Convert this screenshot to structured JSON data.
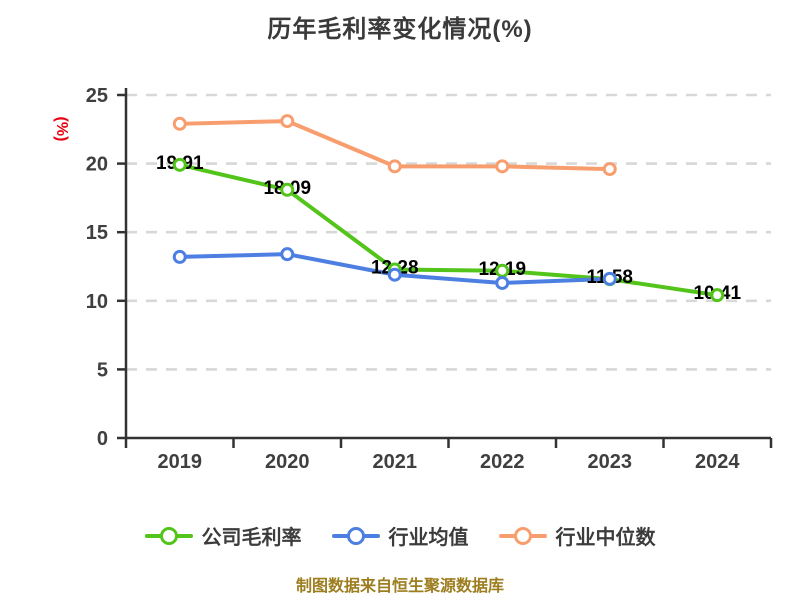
{
  "page": {
    "title": "历年毛利率变化情况(%)",
    "footer": "制图数据来自恒生聚源数据库"
  },
  "colors": {
    "background": "#ffffff",
    "title_text": "#3a3a3a",
    "axis_line": "#333333",
    "axis_text": "#3f3f3f",
    "gridline": "#d8d8d8",
    "value_label": "#000000",
    "ylabel_text": "#e60012",
    "legend_text": "#3c3c3c",
    "footer_text": "#9c7d1f"
  },
  "chart_data": {
    "type": "line",
    "title": "历年毛利率变化情况(%)",
    "ylabel": "(%)",
    "xlabel": "",
    "x": [
      "2019",
      "2020",
      "2021",
      "2022",
      "2023",
      "2024"
    ],
    "ylim": [
      0,
      25
    ],
    "yticks": [
      0,
      5,
      10,
      15,
      20,
      25
    ],
    "ytick_interval": 5,
    "grid": "horizontal dashed",
    "legend_position": "bottom",
    "marker": "hollow-circle",
    "series": [
      {
        "name": "公司毛利率",
        "color": "#52c41a",
        "values": [
          19.91,
          18.09,
          12.28,
          12.19,
          11.58,
          10.41
        ],
        "point_labels": [
          "19.91",
          "18.09",
          "12.28",
          "12.19",
          "11.58",
          "10.41"
        ]
      },
      {
        "name": "行业均值",
        "color": "#4d7fe3",
        "values": [
          13.2,
          13.4,
          11.9,
          11.3,
          11.6,
          null
        ],
        "point_labels": null
      },
      {
        "name": "行业中位数",
        "color": "#f89e6e",
        "values": [
          22.9,
          23.1,
          19.8,
          19.8,
          19.6,
          null
        ],
        "point_labels": null
      }
    ]
  }
}
